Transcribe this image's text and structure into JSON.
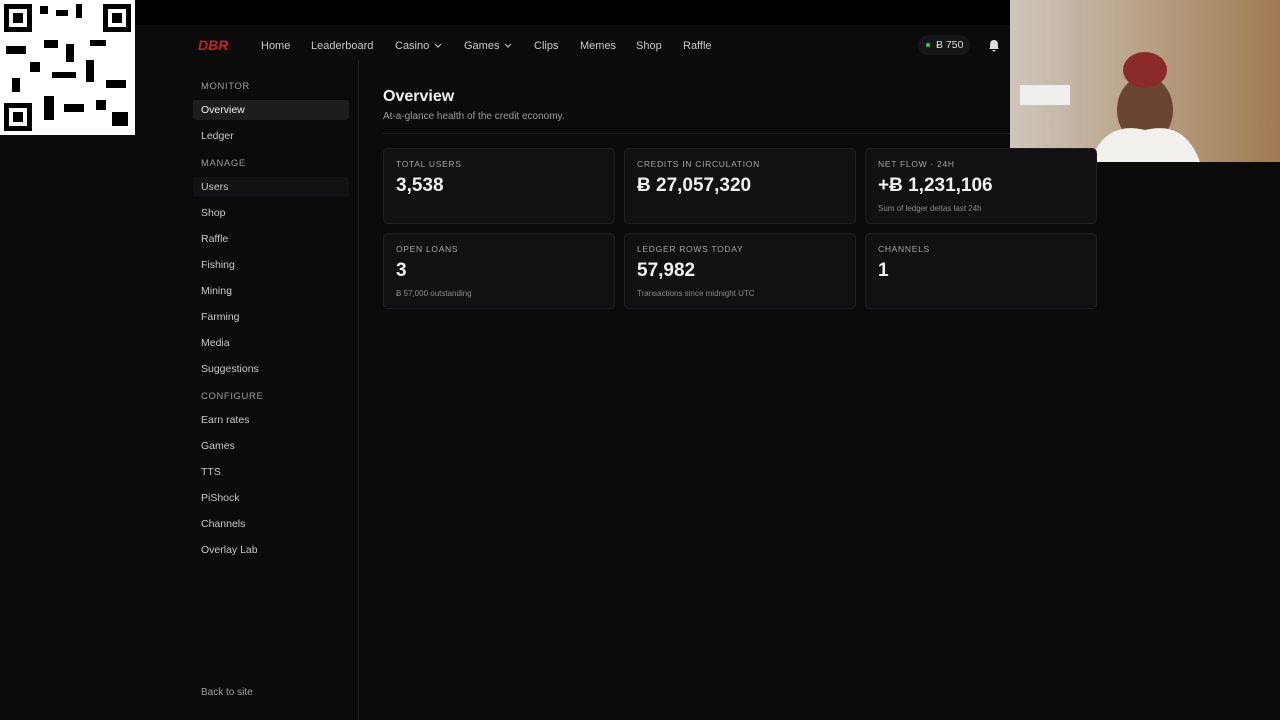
{
  "nav": {
    "logo": "DBR",
    "links": [
      "Home",
      "Leaderboard",
      "Casino",
      "Games",
      "Clips",
      "Memes",
      "Shop",
      "Raffle"
    ],
    "balance": "Ƀ 750"
  },
  "sidebar": {
    "sections": [
      {
        "title": "MONITOR",
        "items": [
          "Overview",
          "Ledger"
        ]
      },
      {
        "title": "MANAGE",
        "items": [
          "Users",
          "Shop",
          "Raffle",
          "Fishing",
          "Mining",
          "Farming",
          "Media",
          "Suggestions"
        ]
      },
      {
        "title": "CONFIGURE",
        "items": [
          "Earn rates",
          "Games",
          "TTS",
          "PiShock",
          "Channels",
          "Overlay Lab"
        ]
      }
    ],
    "footer": "Back to site"
  },
  "main": {
    "title": "Overview",
    "subtitle": "At-a-glance health of the credit economy.",
    "cards": [
      {
        "label": "TOTAL USERS",
        "value": "3,538"
      },
      {
        "label": "CREDITS IN CIRCULATION",
        "value": "Ƀ 27,057,320"
      },
      {
        "label": "NET FLOW · 24H",
        "value": "+Ƀ 1,231,106",
        "note": "Sum of ledger deltas last 24h"
      },
      {
        "label": "OPEN LOANS",
        "value": "3",
        "note": "Ƀ 57,000 outstanding"
      },
      {
        "label": "LEDGER ROWS TODAY",
        "value": "57,982",
        "note": "Transactions since midnight UTC"
      },
      {
        "label": "CHANNELS",
        "value": "1"
      }
    ]
  }
}
